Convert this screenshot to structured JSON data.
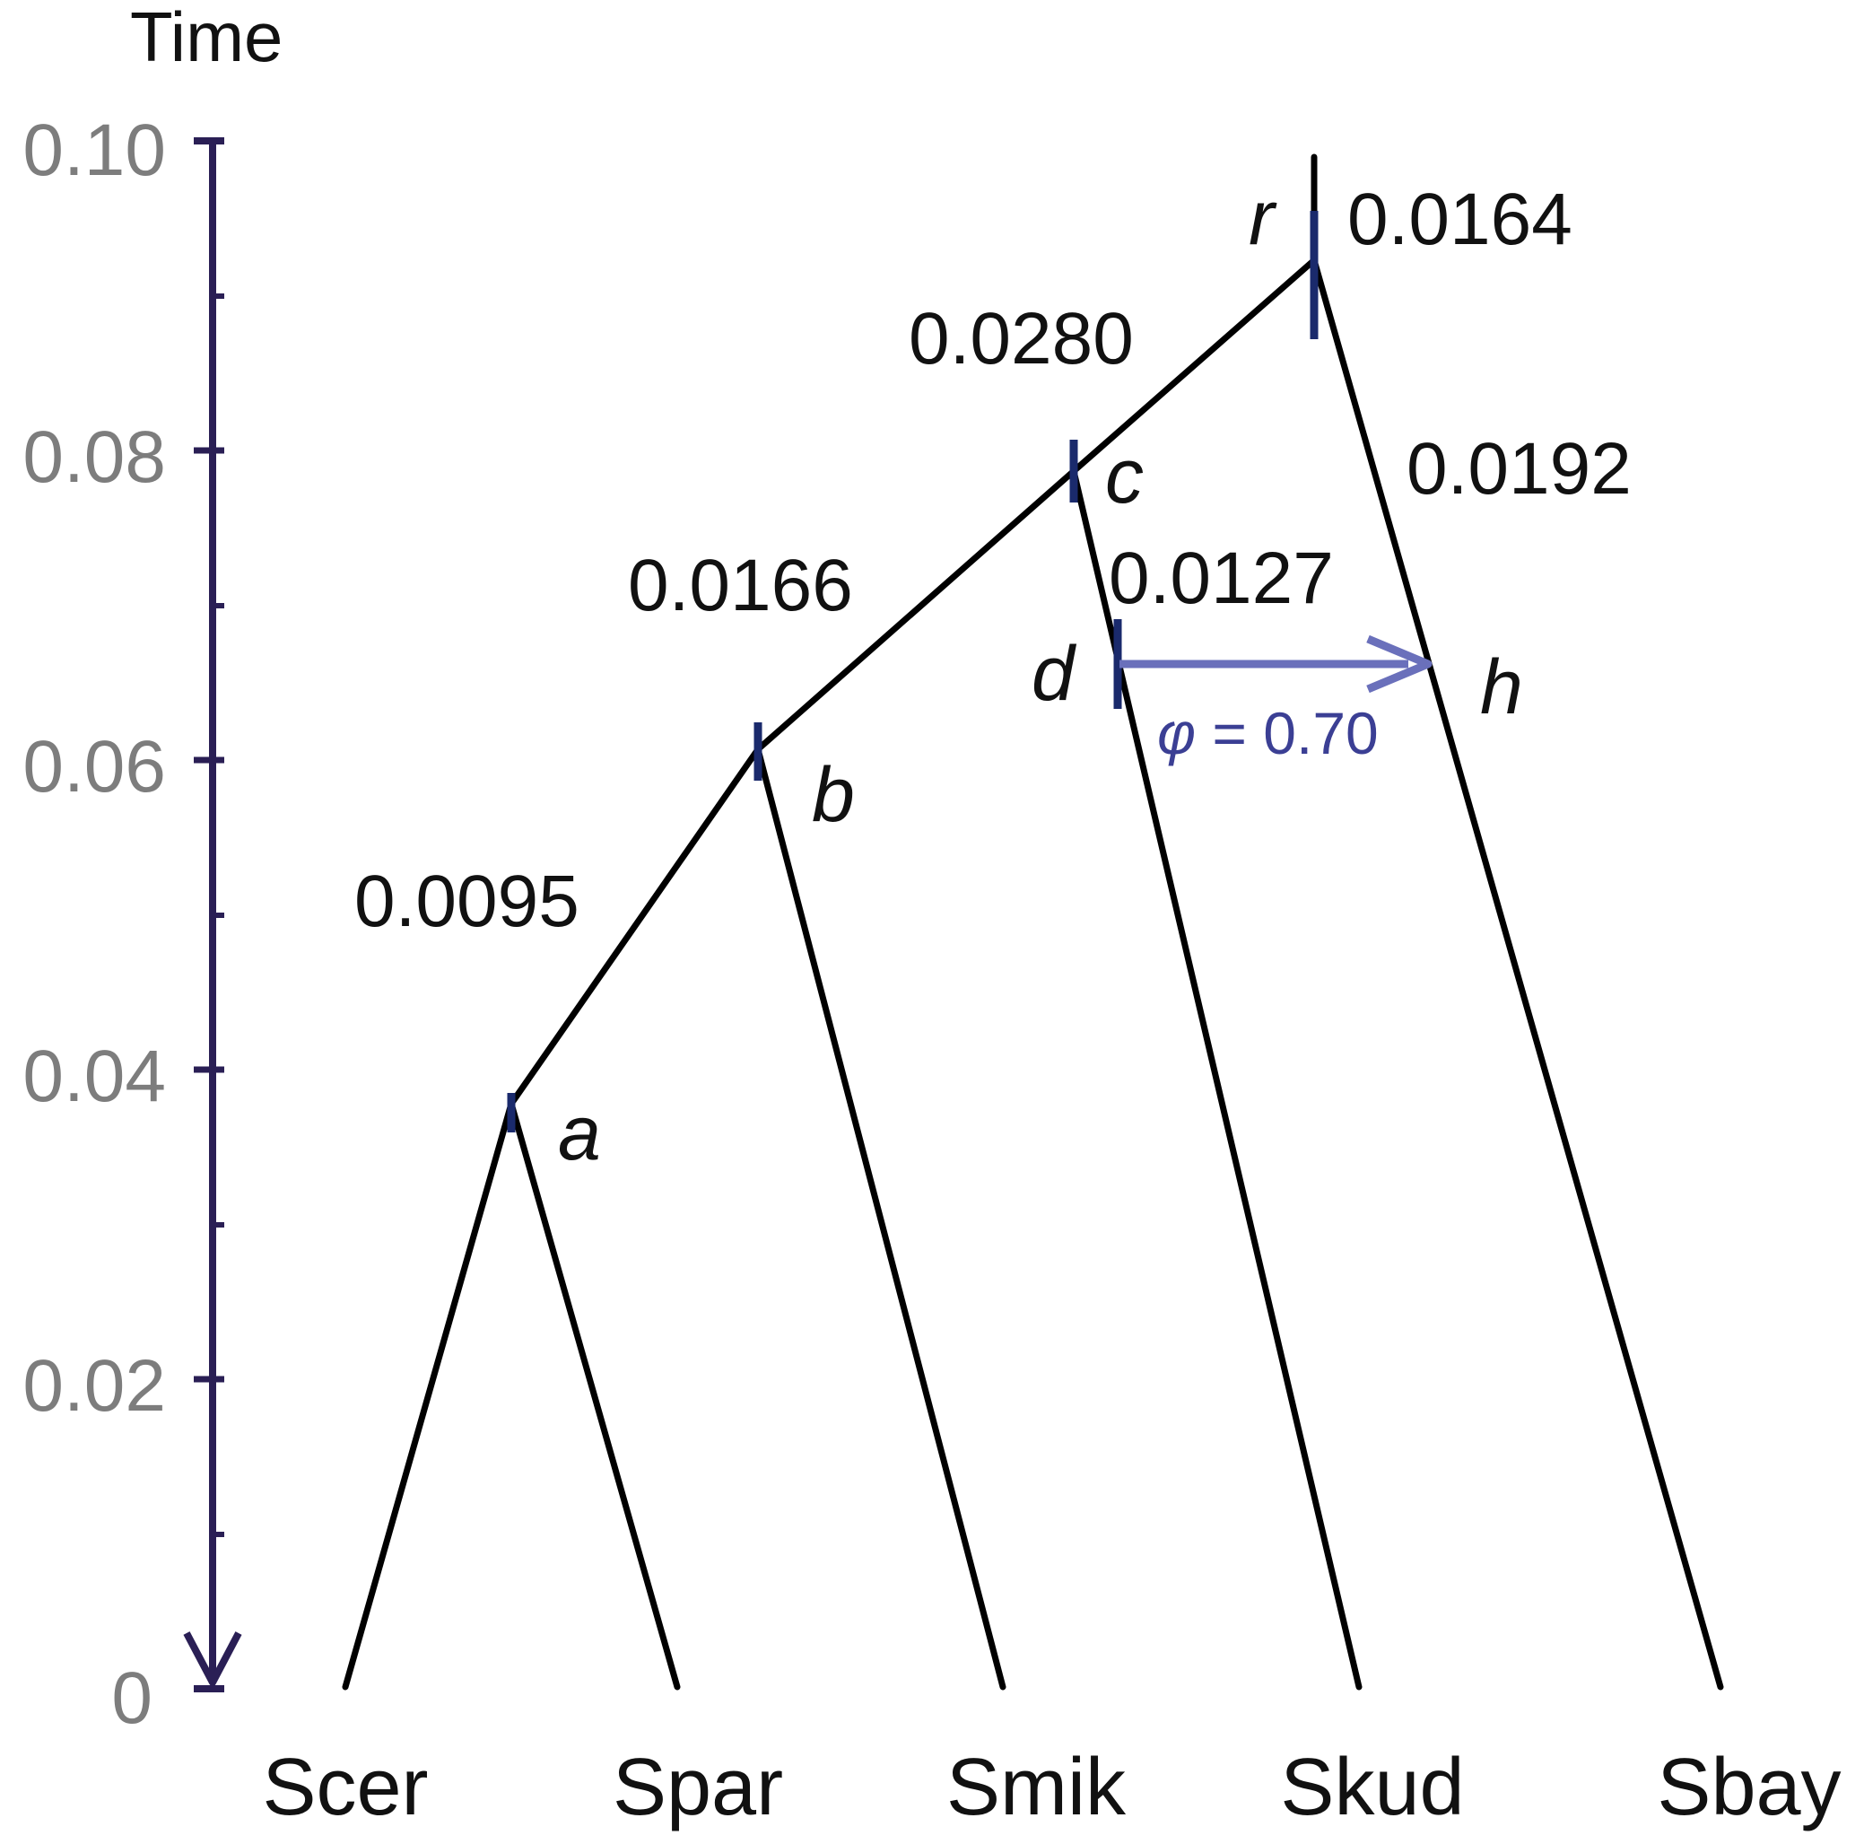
{
  "axis": {
    "title": "Time",
    "ticks": [
      "0",
      "0.02",
      "0.04",
      "0.06",
      "0.08",
      "0.10"
    ],
    "color": "#2a1f55"
  },
  "taxa": [
    "Scer",
    "Spar",
    "Smik",
    "Skud",
    "Sbay"
  ],
  "nodes": {
    "a": "a",
    "b": "b",
    "c": "c",
    "d": "d",
    "h": "h",
    "r": "r"
  },
  "branch_lengths": {
    "ab": "0.0095",
    "bc": "0.0166",
    "cr": "0.0280",
    "root": "0.0164",
    "cd": "0.0127",
    "rh": "0.0192"
  },
  "introgression": {
    "symbol": "φ",
    "text": " = 0.70",
    "color": "#6a70bb"
  }
}
